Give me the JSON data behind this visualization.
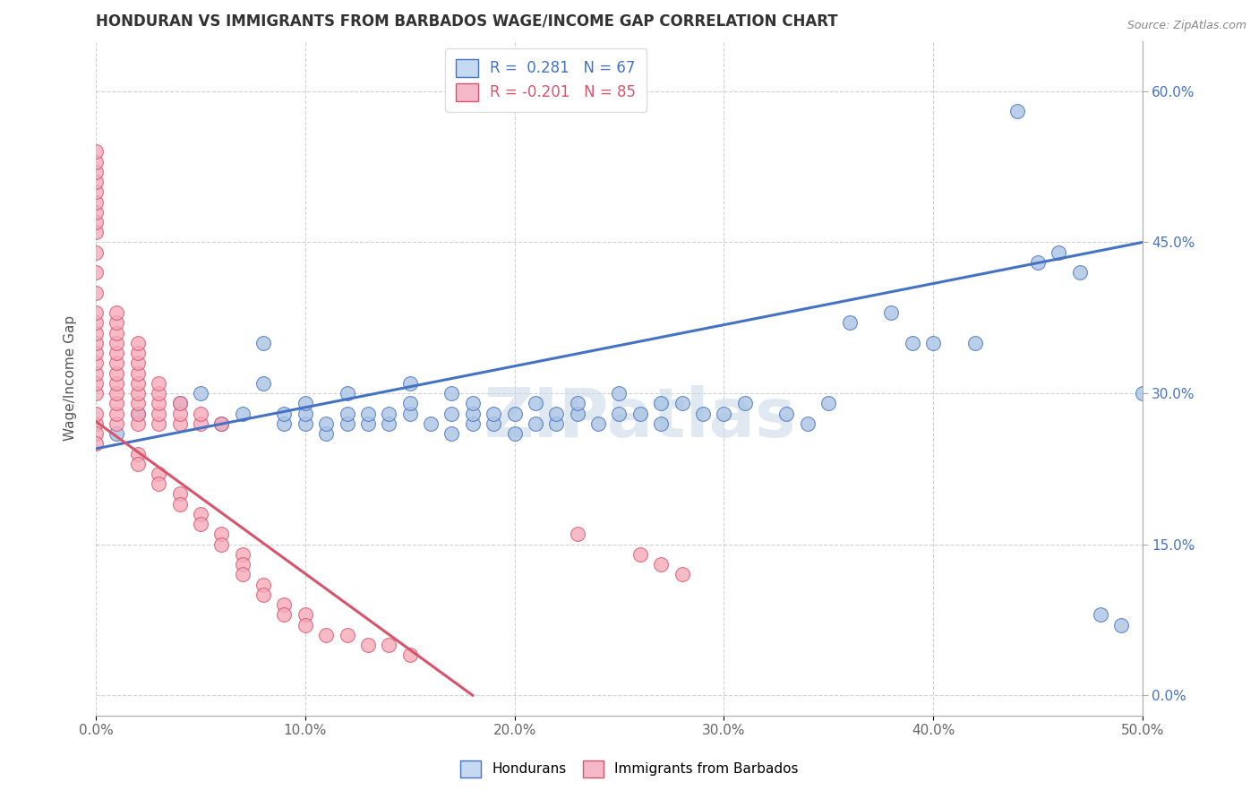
{
  "title": "HONDURAN VS IMMIGRANTS FROM BARBADOS WAGE/INCOME GAP CORRELATION CHART",
  "source": "Source: ZipAtlas.com",
  "ylabel": "Wage/Income Gap",
  "xlim": [
    0.0,
    0.5
  ],
  "ylim": [
    -0.02,
    0.65
  ],
  "blue_R": 0.281,
  "blue_N": 67,
  "pink_R": -0.201,
  "pink_N": 85,
  "blue_color": "#aac4e4",
  "pink_color": "#f5aabb",
  "blue_line_color": "#4472c4",
  "pink_line_color": "#d9546a",
  "legend_blue_face": "#c5d9f0",
  "legend_pink_face": "#f4b8c8",
  "watermark": "ZIPatlas",
  "watermark_color": "#c8d8e8",
  "blue_trend_x0": 0.0,
  "blue_trend_y0": 0.245,
  "blue_trend_x1": 0.5,
  "blue_trend_y1": 0.45,
  "pink_trend_x0": 0.0,
  "pink_trend_y0": 0.272,
  "pink_trend_x1": 0.18,
  "pink_trend_y1": 0.0,
  "blue_scatter_x": [
    0.01,
    0.02,
    0.04,
    0.05,
    0.06,
    0.07,
    0.08,
    0.08,
    0.09,
    0.09,
    0.1,
    0.1,
    0.1,
    0.11,
    0.11,
    0.12,
    0.12,
    0.12,
    0.13,
    0.13,
    0.14,
    0.14,
    0.15,
    0.15,
    0.15,
    0.16,
    0.17,
    0.17,
    0.17,
    0.18,
    0.18,
    0.18,
    0.19,
    0.19,
    0.2,
    0.2,
    0.21,
    0.21,
    0.22,
    0.22,
    0.23,
    0.23,
    0.24,
    0.25,
    0.25,
    0.26,
    0.27,
    0.27,
    0.28,
    0.29,
    0.3,
    0.31,
    0.33,
    0.34,
    0.35,
    0.36,
    0.38,
    0.39,
    0.4,
    0.42,
    0.44,
    0.45,
    0.46,
    0.47,
    0.48,
    0.49,
    0.5
  ],
  "blue_scatter_y": [
    0.26,
    0.28,
    0.29,
    0.3,
    0.27,
    0.28,
    0.31,
    0.35,
    0.27,
    0.28,
    0.27,
    0.28,
    0.29,
    0.26,
    0.27,
    0.27,
    0.28,
    0.3,
    0.27,
    0.28,
    0.27,
    0.28,
    0.28,
    0.29,
    0.31,
    0.27,
    0.26,
    0.28,
    0.3,
    0.27,
    0.28,
    0.29,
    0.27,
    0.28,
    0.26,
    0.28,
    0.27,
    0.29,
    0.27,
    0.28,
    0.28,
    0.29,
    0.27,
    0.28,
    0.3,
    0.28,
    0.27,
    0.29,
    0.29,
    0.28,
    0.28,
    0.29,
    0.28,
    0.27,
    0.29,
    0.37,
    0.38,
    0.35,
    0.35,
    0.35,
    0.58,
    0.43,
    0.44,
    0.42,
    0.08,
    0.07,
    0.3
  ],
  "pink_scatter_x": [
    0.0,
    0.0,
    0.0,
    0.0,
    0.0,
    0.0,
    0.0,
    0.0,
    0.0,
    0.0,
    0.0,
    0.0,
    0.0,
    0.0,
    0.0,
    0.0,
    0.0,
    0.0,
    0.0,
    0.0,
    0.0,
    0.0,
    0.0,
    0.0,
    0.0,
    0.01,
    0.01,
    0.01,
    0.01,
    0.01,
    0.01,
    0.01,
    0.01,
    0.01,
    0.01,
    0.01,
    0.01,
    0.02,
    0.02,
    0.02,
    0.02,
    0.02,
    0.02,
    0.02,
    0.02,
    0.02,
    0.02,
    0.02,
    0.03,
    0.03,
    0.03,
    0.03,
    0.03,
    0.03,
    0.03,
    0.04,
    0.04,
    0.04,
    0.04,
    0.04,
    0.05,
    0.05,
    0.05,
    0.05,
    0.06,
    0.06,
    0.06,
    0.07,
    0.07,
    0.07,
    0.08,
    0.08,
    0.09,
    0.09,
    0.1,
    0.1,
    0.11,
    0.12,
    0.13,
    0.14,
    0.15,
    0.23,
    0.26,
    0.27,
    0.28
  ],
  "pink_scatter_y": [
    0.27,
    0.28,
    0.3,
    0.31,
    0.32,
    0.33,
    0.34,
    0.35,
    0.36,
    0.37,
    0.38,
    0.4,
    0.42,
    0.44,
    0.46,
    0.47,
    0.48,
    0.49,
    0.5,
    0.51,
    0.52,
    0.53,
    0.54,
    0.26,
    0.25,
    0.27,
    0.28,
    0.29,
    0.3,
    0.31,
    0.32,
    0.33,
    0.34,
    0.35,
    0.36,
    0.37,
    0.38,
    0.27,
    0.28,
    0.29,
    0.3,
    0.31,
    0.32,
    0.33,
    0.34,
    0.35,
    0.24,
    0.23,
    0.27,
    0.28,
    0.29,
    0.3,
    0.31,
    0.22,
    0.21,
    0.27,
    0.28,
    0.29,
    0.2,
    0.19,
    0.27,
    0.28,
    0.18,
    0.17,
    0.27,
    0.16,
    0.15,
    0.14,
    0.13,
    0.12,
    0.11,
    0.1,
    0.09,
    0.08,
    0.08,
    0.07,
    0.06,
    0.06,
    0.05,
    0.05,
    0.04,
    0.16,
    0.14,
    0.13,
    0.12
  ]
}
